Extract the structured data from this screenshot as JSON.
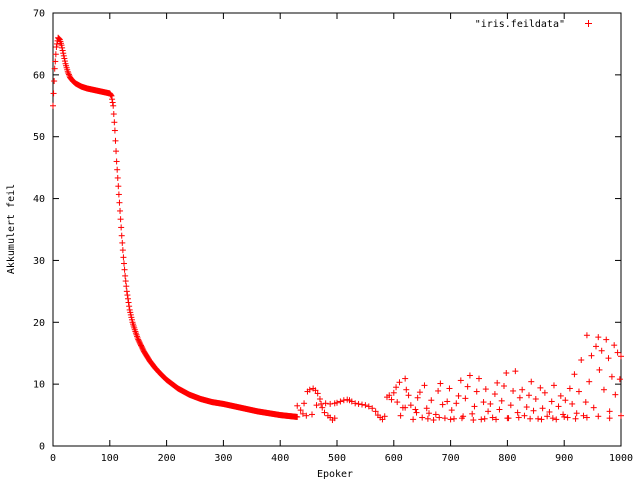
{
  "chart_data": {
    "type": "scatter",
    "xlabel": "Epoker",
    "ylabel": "Akkumulert feil",
    "xlim": [
      0,
      1000
    ],
    "ylim": [
      0,
      70
    ],
    "xticks": [
      0,
      100,
      200,
      300,
      400,
      500,
      600,
      700,
      800,
      900,
      1000
    ],
    "yticks": [
      0,
      10,
      20,
      30,
      40,
      50,
      60,
      70
    ],
    "legend": "top-right",
    "grid": false,
    "marker": "plus",
    "series": [
      {
        "name": "\"iris.feildata\"",
        "color": "#ff0000",
        "curve_points": [
          [
            0,
            55
          ],
          [
            3,
            61
          ],
          [
            6,
            64.5
          ],
          [
            9,
            66
          ],
          [
            12,
            65.7
          ],
          [
            15,
            64.8
          ],
          [
            18,
            63.5
          ],
          [
            22,
            61.8
          ],
          [
            26,
            60.5
          ],
          [
            30,
            59.6
          ],
          [
            35,
            59
          ],
          [
            40,
            58.6
          ],
          [
            50,
            58.1
          ],
          [
            60,
            57.8
          ],
          [
            70,
            57.6
          ],
          [
            80,
            57.4
          ],
          [
            90,
            57.2
          ],
          [
            100,
            57
          ],
          [
            103,
            56.6
          ],
          [
            106,
            55
          ],
          [
            109,
            51
          ],
          [
            112,
            46
          ],
          [
            115,
            42
          ],
          [
            118,
            38
          ],
          [
            121,
            34
          ],
          [
            124,
            30.5
          ],
          [
            127,
            27.5
          ],
          [
            130,
            25
          ],
          [
            135,
            22
          ],
          [
            140,
            20
          ],
          [
            145,
            18.5
          ],
          [
            150,
            17.2
          ],
          [
            160,
            15.3
          ],
          [
            170,
            13.8
          ],
          [
            180,
            12.6
          ],
          [
            190,
            11.6
          ],
          [
            200,
            10.7
          ],
          [
            220,
            9.3
          ],
          [
            240,
            8.3
          ],
          [
            260,
            7.6
          ],
          [
            280,
            7.1
          ],
          [
            300,
            6.8
          ],
          [
            320,
            6.4
          ],
          [
            340,
            6
          ],
          [
            360,
            5.6
          ],
          [
            380,
            5.3
          ],
          [
            400,
            5
          ],
          [
            420,
            4.8
          ],
          [
            430,
            4.7
          ]
        ],
        "noisy_points": [
          [
            430,
            6.5
          ],
          [
            436,
            5.8
          ],
          [
            442,
            6.9
          ],
          [
            448,
            8.8
          ],
          [
            452,
            9.1
          ],
          [
            458,
            9.3
          ],
          [
            462,
            9
          ],
          [
            466,
            8.5
          ],
          [
            470,
            7.6
          ],
          [
            474,
            6.2
          ],
          [
            478,
            5.4
          ],
          [
            484,
            4.9
          ],
          [
            488,
            4.6
          ],
          [
            492,
            4.2
          ],
          [
            496,
            4.5
          ],
          [
            440,
            5.2
          ],
          [
            446,
            4.9
          ],
          [
            456,
            5.1
          ],
          [
            464,
            6.6
          ],
          [
            472,
            6.8
          ],
          [
            480,
            6.9
          ],
          [
            488,
            6.8
          ],
          [
            496,
            6.9
          ],
          [
            500,
            7
          ],
          [
            506,
            7.2
          ],
          [
            512,
            7.4
          ],
          [
            518,
            7.5
          ],
          [
            522,
            7.4
          ],
          [
            526,
            7.2
          ],
          [
            532,
            6.9
          ],
          [
            538,
            6.8
          ],
          [
            544,
            6.7
          ],
          [
            550,
            6.6
          ],
          [
            556,
            6.4
          ],
          [
            562,
            6.1
          ],
          [
            568,
            5.6
          ],
          [
            572,
            5
          ],
          [
            576,
            4.6
          ],
          [
            580,
            4.3
          ],
          [
            584,
            4.8
          ],
          [
            588,
            7.9
          ],
          [
            592,
            8.2
          ],
          [
            596,
            7.5
          ],
          [
            600,
            8.6
          ],
          [
            604,
            9.5
          ],
          [
            606,
            7.1
          ],
          [
            610,
            10.3
          ],
          [
            612,
            4.9
          ],
          [
            616,
            6.2
          ],
          [
            620,
            10.9
          ],
          [
            622,
            9.1
          ],
          [
            626,
            8.2
          ],
          [
            630,
            6.6
          ],
          [
            634,
            4.3
          ],
          [
            638,
            5.9
          ],
          [
            642,
            7.8
          ],
          [
            646,
            8.7
          ],
          [
            650,
            4.6
          ],
          [
            654,
            9.8
          ],
          [
            658,
            6.1
          ],
          [
            662,
            5.3
          ],
          [
            666,
            7.4
          ],
          [
            670,
            4.2
          ],
          [
            674,
            5.1
          ],
          [
            678,
            8.9
          ],
          [
            682,
            10.1
          ],
          [
            686,
            6.7
          ],
          [
            690,
            4.5
          ],
          [
            694,
            7.2
          ],
          [
            698,
            9.3
          ],
          [
            702,
            5.8
          ],
          [
            706,
            4.4
          ],
          [
            710,
            6.9
          ],
          [
            714,
            8.1
          ],
          [
            718,
            10.6
          ],
          [
            722,
            4.8
          ],
          [
            726,
            7.7
          ],
          [
            730,
            9.6
          ],
          [
            734,
            11.4
          ],
          [
            738,
            5.2
          ],
          [
            742,
            6.4
          ],
          [
            746,
            8.8
          ],
          [
            750,
            10.9
          ],
          [
            754,
            4.3
          ],
          [
            758,
            7.1
          ],
          [
            762,
            9.2
          ],
          [
            766,
            5.6
          ],
          [
            770,
            6.8
          ],
          [
            774,
            4.6
          ],
          [
            778,
            8.4
          ],
          [
            782,
            10.2
          ],
          [
            786,
            5.9
          ],
          [
            790,
            7.3
          ],
          [
            794,
            9.7
          ],
          [
            798,
            11.8
          ],
          [
            802,
            4.5
          ],
          [
            806,
            6.6
          ],
          [
            810,
            8.9
          ],
          [
            814,
            12.1
          ],
          [
            818,
            5.4
          ],
          [
            822,
            7.8
          ],
          [
            826,
            9.1
          ],
          [
            830,
            4.9
          ],
          [
            834,
            6.3
          ],
          [
            838,
            8.2
          ],
          [
            842,
            10.4
          ],
          [
            846,
            5.7
          ],
          [
            850,
            7.6
          ],
          [
            854,
            4.4
          ],
          [
            858,
            9.4
          ],
          [
            862,
            6.1
          ],
          [
            866,
            8.6
          ],
          [
            870,
            4.8
          ],
          [
            874,
            5.5
          ],
          [
            878,
            7.2
          ],
          [
            882,
            9.8
          ],
          [
            886,
            4.3
          ],
          [
            890,
            6.4
          ],
          [
            894,
            8.1
          ],
          [
            898,
            5.1
          ],
          [
            902,
            7.4
          ],
          [
            906,
            4.6
          ],
          [
            910,
            9.3
          ],
          [
            914,
            6.8
          ],
          [
            918,
            11.6
          ],
          [
            922,
            5.3
          ],
          [
            926,
            8.8
          ],
          [
            930,
            13.9
          ],
          [
            934,
            4.9
          ],
          [
            938,
            7.1
          ],
          [
            940,
            17.9
          ],
          [
            944,
            10.4
          ],
          [
            948,
            14.6
          ],
          [
            952,
            6.2
          ],
          [
            956,
            16.1
          ],
          [
            960,
            17.6
          ],
          [
            962,
            12.3
          ],
          [
            966,
            15.4
          ],
          [
            970,
            9.1
          ],
          [
            974,
            17.2
          ],
          [
            978,
            14.2
          ],
          [
            980,
            5.6
          ],
          [
            984,
            11.2
          ],
          [
            988,
            16.3
          ],
          [
            990,
            8.3
          ],
          [
            994,
            15.1
          ],
          [
            998,
            10.8
          ],
          [
            1000,
            14.5
          ],
          [
            620,
            6.2
          ],
          [
            640,
            5.4
          ],
          [
            660,
            4.4
          ],
          [
            680,
            4.6
          ],
          [
            700,
            4.3
          ],
          [
            720,
            4.5
          ],
          [
            740,
            4.2
          ],
          [
            760,
            4.4
          ],
          [
            780,
            4.3
          ],
          [
            800,
            4.5
          ],
          [
            820,
            4.6
          ],
          [
            840,
            4.4
          ],
          [
            860,
            4.3
          ],
          [
            880,
            4.5
          ],
          [
            900,
            4.7
          ],
          [
            920,
            4.4
          ],
          [
            940,
            4.6
          ],
          [
            960,
            4.8
          ],
          [
            980,
            4.5
          ],
          [
            1000,
            4.9
          ]
        ]
      }
    ]
  }
}
